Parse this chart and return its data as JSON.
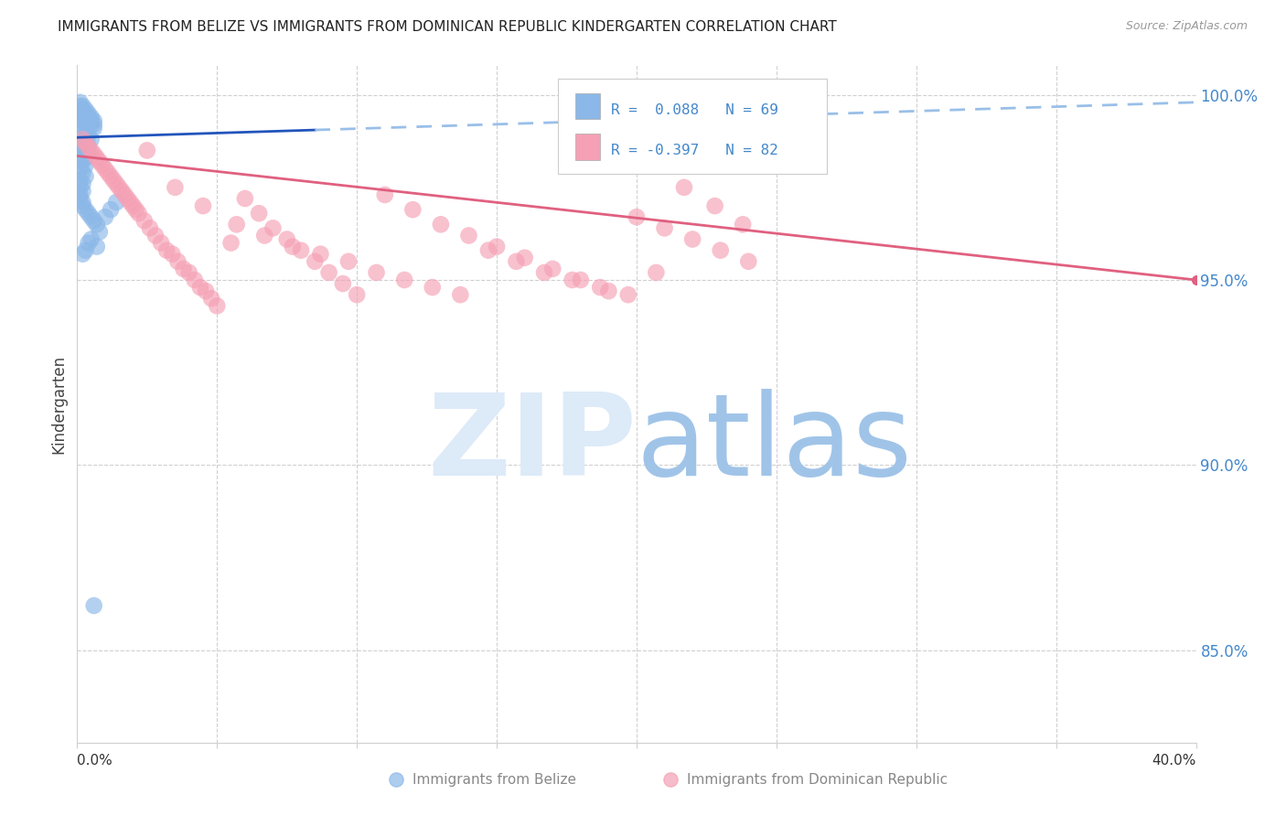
{
  "title": "IMMIGRANTS FROM BELIZE VS IMMIGRANTS FROM DOMINICAN REPUBLIC KINDERGARTEN CORRELATION CHART",
  "source": "Source: ZipAtlas.com",
  "ylabel": "Kindergarten",
  "ylabel_right_ticks": [
    85.0,
    90.0,
    95.0,
    100.0
  ],
  "xmin": 0.0,
  "xmax": 0.4,
  "ymin": 0.825,
  "ymax": 1.008,
  "blue_color": "#8bb8e8",
  "pink_color": "#f5a0b5",
  "blue_line_color": "#2255bb",
  "pink_line_color": "#e06080",
  "dashed_line_color": "#99bfe8",
  "right_axis_color": "#4488cc",
  "grid_color": "#d0d0d0",
  "background_color": "#ffffff",
  "title_color": "#222222",
  "source_color": "#999999",
  "blue_N": 69,
  "pink_N": 82,
  "blue_R": 0.088,
  "pink_R": -0.397,
  "blue_scatter_x": [
    0.001,
    0.001,
    0.001,
    0.001,
    0.001,
    0.002,
    0.002,
    0.002,
    0.002,
    0.002,
    0.003,
    0.003,
    0.003,
    0.003,
    0.003,
    0.004,
    0.004,
    0.004,
    0.004,
    0.005,
    0.005,
    0.005,
    0.006,
    0.006,
    0.006,
    0.001,
    0.002,
    0.003,
    0.004,
    0.005,
    0.001,
    0.002,
    0.003,
    0.004,
    0.001,
    0.002,
    0.003,
    0.004,
    0.002,
    0.003,
    0.001,
    0.002,
    0.003,
    0.001,
    0.002,
    0.003,
    0.001,
    0.002,
    0.001,
    0.002,
    0.001,
    0.001,
    0.002,
    0.002,
    0.003,
    0.004,
    0.005,
    0.006,
    0.007,
    0.008,
    0.01,
    0.012,
    0.014,
    0.007,
    0.004,
    0.003,
    0.005,
    0.002,
    0.006
  ],
  "blue_scatter_y": [
    0.998,
    0.997,
    0.996,
    0.995,
    0.994,
    0.997,
    0.996,
    0.995,
    0.994,
    0.993,
    0.996,
    0.995,
    0.994,
    0.993,
    0.992,
    0.995,
    0.994,
    0.993,
    0.992,
    0.994,
    0.993,
    0.992,
    0.993,
    0.992,
    0.991,
    0.991,
    0.99,
    0.989,
    0.989,
    0.988,
    0.988,
    0.987,
    0.987,
    0.986,
    0.986,
    0.985,
    0.985,
    0.984,
    0.984,
    0.983,
    0.983,
    0.982,
    0.981,
    0.98,
    0.979,
    0.978,
    0.977,
    0.976,
    0.975,
    0.974,
    0.973,
    0.972,
    0.971,
    0.97,
    0.969,
    0.968,
    0.967,
    0.966,
    0.965,
    0.963,
    0.967,
    0.969,
    0.971,
    0.959,
    0.96,
    0.958,
    0.961,
    0.957,
    0.862
  ],
  "pink_scatter_x": [
    0.002,
    0.003,
    0.004,
    0.005,
    0.006,
    0.007,
    0.008,
    0.009,
    0.01,
    0.011,
    0.012,
    0.013,
    0.014,
    0.015,
    0.016,
    0.017,
    0.018,
    0.019,
    0.02,
    0.021,
    0.022,
    0.024,
    0.026,
    0.028,
    0.03,
    0.032,
    0.034,
    0.036,
    0.038,
    0.04,
    0.042,
    0.044,
    0.046,
    0.048,
    0.05,
    0.055,
    0.06,
    0.065,
    0.07,
    0.075,
    0.08,
    0.085,
    0.09,
    0.095,
    0.1,
    0.11,
    0.12,
    0.13,
    0.14,
    0.15,
    0.16,
    0.17,
    0.18,
    0.19,
    0.2,
    0.21,
    0.22,
    0.23,
    0.24,
    0.025,
    0.035,
    0.045,
    0.057,
    0.067,
    0.077,
    0.087,
    0.097,
    0.107,
    0.117,
    0.127,
    0.137,
    0.147,
    0.157,
    0.167,
    0.177,
    0.187,
    0.197,
    0.207,
    0.217,
    0.228,
    0.238,
    0.248
  ],
  "pink_scatter_y": [
    0.988,
    0.987,
    0.986,
    0.985,
    0.984,
    0.983,
    0.982,
    0.981,
    0.98,
    0.979,
    0.978,
    0.977,
    0.976,
    0.975,
    0.974,
    0.973,
    0.972,
    0.971,
    0.97,
    0.969,
    0.968,
    0.966,
    0.964,
    0.962,
    0.96,
    0.958,
    0.957,
    0.955,
    0.953,
    0.952,
    0.95,
    0.948,
    0.947,
    0.945,
    0.943,
    0.96,
    0.972,
    0.968,
    0.964,
    0.961,
    0.958,
    0.955,
    0.952,
    0.949,
    0.946,
    0.973,
    0.969,
    0.965,
    0.962,
    0.959,
    0.956,
    0.953,
    0.95,
    0.947,
    0.967,
    0.964,
    0.961,
    0.958,
    0.955,
    0.985,
    0.975,
    0.97,
    0.965,
    0.962,
    0.959,
    0.957,
    0.955,
    0.952,
    0.95,
    0.948,
    0.946,
    0.958,
    0.955,
    0.952,
    0.95,
    0.948,
    0.946,
    0.952,
    0.975,
    0.97,
    0.965,
    0.993
  ]
}
